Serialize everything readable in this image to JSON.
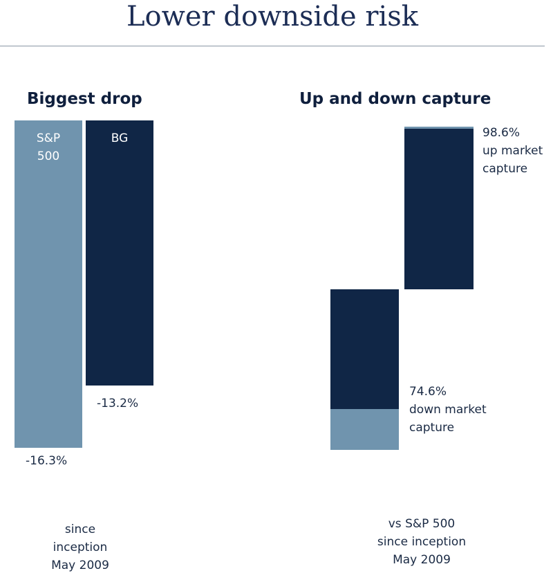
{
  "page": {
    "title": "Lower downside risk"
  },
  "colors": {
    "sp500": "#7094ae",
    "bg": "#102646",
    "rule": "#8a96a3"
  },
  "chart_data": [
    {
      "type": "bar",
      "title": "Biggest drop",
      "categories": [
        "S&P 500",
        "BG"
      ],
      "category_labels": [
        [
          "S&P",
          "500"
        ],
        [
          "BG"
        ]
      ],
      "values": [
        -16.3,
        -13.2
      ],
      "value_labels": [
        "-16.3%",
        "-13.2%"
      ],
      "ylim": [
        -16.3,
        0
      ],
      "grid": false,
      "footnote": [
        "since",
        "inception",
        "May 2009"
      ]
    },
    {
      "type": "bar",
      "title": "Up and down capture",
      "categories": [
        "down market capture",
        "up market capture"
      ],
      "values": [
        74.6,
        98.6
      ],
      "reference": 100,
      "value_labels": [
        [
          "74.6%",
          "down market",
          "capture"
        ],
        [
          "98.6%",
          "up market",
          "capture"
        ]
      ],
      "grid": false,
      "footnote": [
        "vs S&P 500",
        "since inception",
        "May 2009"
      ]
    }
  ]
}
